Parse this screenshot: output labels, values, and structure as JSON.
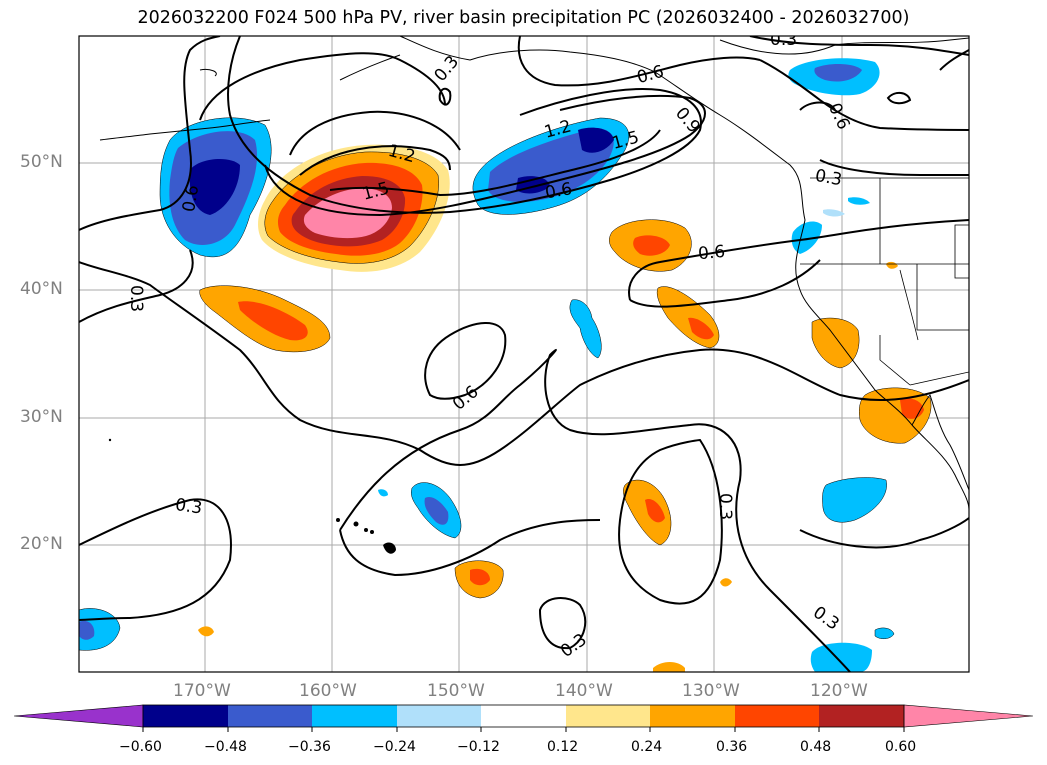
{
  "title": "2026032200 F024 500 hPa PV, river basin precipitation PC (2026032400 - 2026032700)",
  "map": {
    "lon_range": [
      -180,
      -110
    ],
    "lat_range": [
      10,
      60
    ],
    "lat_labels": [
      "50°N",
      "40°N",
      "30°N",
      "20°N"
    ],
    "lon_labels": [
      "170°W",
      "160°W",
      "150°W",
      "140°W",
      "130°W",
      "120°W"
    ],
    "contour_labels": [
      "0.3",
      "0.3",
      "0.3",
      "0.3",
      "0.3",
      "0.3",
      "0.3",
      "0.3",
      "0.6",
      "0.6",
      "0.6",
      "0.6",
      "0.6",
      "0.6",
      "1.2",
      "1.2",
      "1.5",
      "1.5",
      "0.9"
    ],
    "gridlines": true,
    "coastlines": true
  },
  "colorbar": {
    "ticks": [
      "−0.60",
      "−0.48",
      "−0.36",
      "−0.24",
      "−0.12",
      "0.12",
      "0.24",
      "0.36",
      "0.48",
      "0.60"
    ],
    "colors": [
      "#9932cc",
      "#00008b",
      "#3a5bcd",
      "#00bfff",
      "#b0e0fa",
      "#ffffff",
      "#ffe68c",
      "#ffa500",
      "#ff4500",
      "#b22222",
      "#ff85a8"
    ],
    "extend": "both"
  }
}
